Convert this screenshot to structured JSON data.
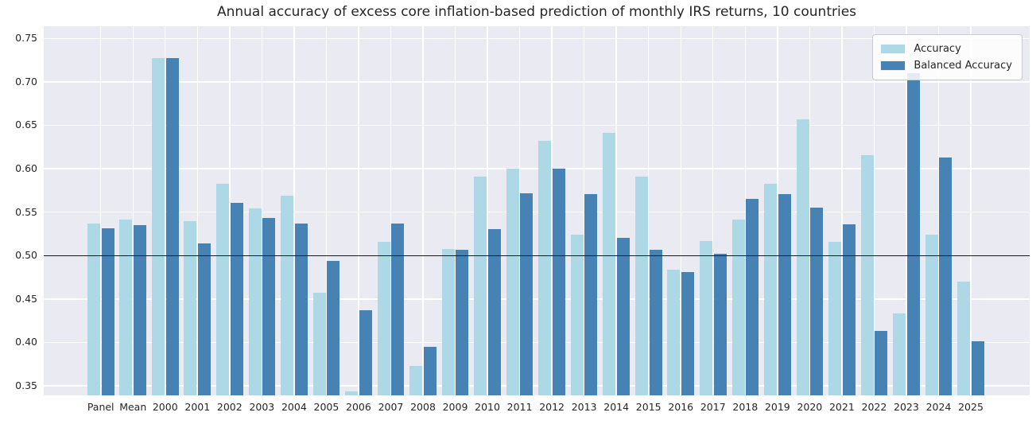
{
  "title": "Annual accuracy of excess core inflation-based prediction of monthly IRS returns, 10 countries",
  "legend": {
    "items": [
      {
        "label": "Accuracy",
        "color": "#add8e6"
      },
      {
        "label": "Balanced Accuracy",
        "color": "#4682b4"
      }
    ]
  },
  "axes": {
    "ytick_format_decimals": 2,
    "background": "#eaeaf2",
    "grid_color": "#ffffff",
    "reference_line_color": "#1a1a1a"
  },
  "chart_data": {
    "type": "bar",
    "title": "Annual accuracy of excess core inflation-based prediction of monthly IRS returns, 10 countries",
    "xlabel": "",
    "ylabel": "",
    "grid": true,
    "legend_position": "upper right",
    "ylim": [
      0.339,
      0.764
    ],
    "yticks": [
      0.35,
      0.4,
      0.45,
      0.5,
      0.55,
      0.6,
      0.65,
      0.7,
      0.75
    ],
    "reference_line": 0.5,
    "categories": [
      "Panel",
      "Mean",
      "2000",
      "2001",
      "2002",
      "2003",
      "2004",
      "2005",
      "2006",
      "2007",
      "2008",
      "2009",
      "2010",
      "2011",
      "2012",
      "2013",
      "2014",
      "2015",
      "2016",
      "2017",
      "2018",
      "2019",
      "2020",
      "2021",
      "2022",
      "2023",
      "2024",
      "2025"
    ],
    "series": [
      {
        "name": "Accuracy",
        "color": "#add8e6",
        "values": [
          0.537,
          0.541,
          0.727,
          0.54,
          0.583,
          0.554,
          0.569,
          0.457,
          0.344,
          0.516,
          0.373,
          0.508,
          0.591,
          0.6,
          0.632,
          0.524,
          0.641,
          0.591,
          0.484,
          0.517,
          0.541,
          0.583,
          0.657,
          0.516,
          0.616,
          0.433,
          0.524,
          0.47
        ]
      },
      {
        "name": "Balanced Accuracy",
        "color": "#4682b4",
        "values": [
          0.531,
          0.535,
          0.727,
          0.514,
          0.561,
          0.543,
          0.537,
          0.494,
          0.437,
          0.537,
          0.395,
          0.507,
          0.53,
          0.572,
          0.6,
          0.571,
          0.52,
          0.507,
          0.481,
          0.502,
          0.565,
          0.571,
          0.555,
          0.536,
          0.413,
          0.71,
          0.613,
          0.401
        ]
      }
    ]
  }
}
